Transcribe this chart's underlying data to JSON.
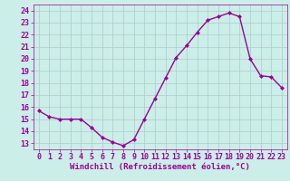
{
  "x": [
    0,
    1,
    2,
    3,
    4,
    5,
    6,
    7,
    8,
    9,
    10,
    11,
    12,
    13,
    14,
    15,
    16,
    17,
    18,
    19,
    20,
    21,
    22,
    23
  ],
  "y": [
    15.7,
    15.2,
    15.0,
    15.0,
    15.0,
    14.3,
    13.5,
    13.1,
    12.8,
    13.3,
    15.0,
    16.7,
    18.4,
    20.1,
    21.1,
    22.2,
    23.2,
    23.5,
    23.8,
    23.5,
    20.0,
    18.6,
    18.5,
    17.6
  ],
  "line_color": "#990099",
  "marker": "D",
  "marker_size": 2.0,
  "xlim": [
    -0.5,
    23.5
  ],
  "ylim": [
    12.5,
    24.5
  ],
  "yticks": [
    13,
    14,
    15,
    16,
    17,
    18,
    19,
    20,
    21,
    22,
    23,
    24
  ],
  "xticks": [
    0,
    1,
    2,
    3,
    4,
    5,
    6,
    7,
    8,
    9,
    10,
    11,
    12,
    13,
    14,
    15,
    16,
    17,
    18,
    19,
    20,
    21,
    22,
    23
  ],
  "xlabel": "Windchill (Refroidissement éolien,°C)",
  "bg_color": "#cceee8",
  "grid_color": "#aacccc",
  "tick_label_color": "#990099",
  "xlabel_color": "#990099",
  "xlabel_fontsize": 6.5,
  "tick_fontsize": 6.0,
  "line_width": 1.0
}
